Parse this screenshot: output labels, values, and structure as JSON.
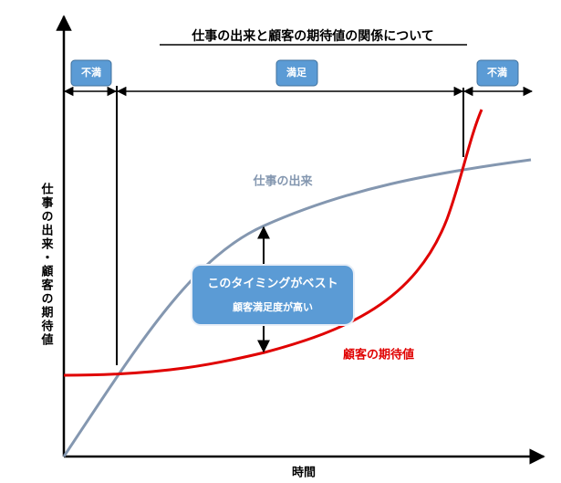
{
  "title": "仕事の出来と顧客の期待値の関係について",
  "zones": [
    {
      "label": "不満"
    },
    {
      "label": "満足"
    },
    {
      "label": "不満"
    }
  ],
  "curves": [
    {
      "label": "仕事の出来"
    },
    {
      "label": "顧客の期待値"
    }
  ],
  "callout": {
    "title": "このタイミングがベスト",
    "text": "顧客満足度が高い"
  },
  "axes": {
    "y_label": "仕事の出来・顧客の期待値",
    "x_label": "時間"
  }
}
